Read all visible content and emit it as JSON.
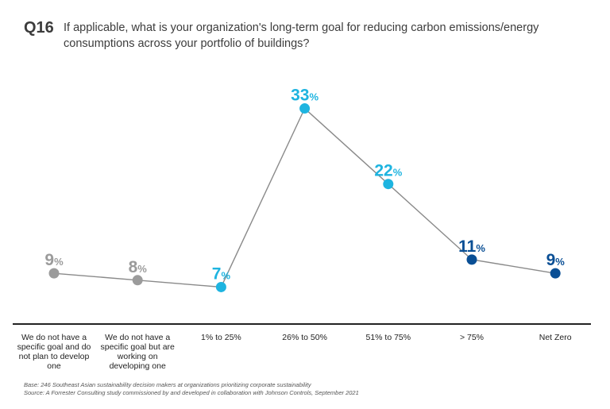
{
  "question": {
    "number": "Q16",
    "text": "If applicable, what is your organization's long-term goal for reducing carbon emissions/energy consumptions across your portfolio of buildings?"
  },
  "colors": {
    "gray": "#9b9b9b",
    "light_blue": "#1eb4e0",
    "dark_blue": "#0a4f95",
    "line": "#8a8a8a",
    "axis": "#222222"
  },
  "chart_data": {
    "type": "line",
    "categories": [
      "We do not have a specific goal and do not plan to develop one",
      "We do not have a specific goal but are working on developing one",
      "1% to 25%",
      "26% to 50%",
      "51% to 75%",
      "> 75%",
      "Net Zero"
    ],
    "values": [
      9,
      8,
      7,
      33,
      22,
      11,
      9
    ],
    "unit": "%",
    "point_colors": [
      "gray",
      "gray",
      "light_blue",
      "light_blue",
      "light_blue",
      "dark_blue",
      "dark_blue"
    ],
    "ylim": [
      0,
      35
    ]
  },
  "footer": {
    "base": "Base: 246 Southeast Asian sustainability decision makers at organizations prioritizing corporate sustainability",
    "source": "Source: A Forrester Consulting study commissioned by and developed in collaboration with Johnson Controls, September 2021"
  }
}
